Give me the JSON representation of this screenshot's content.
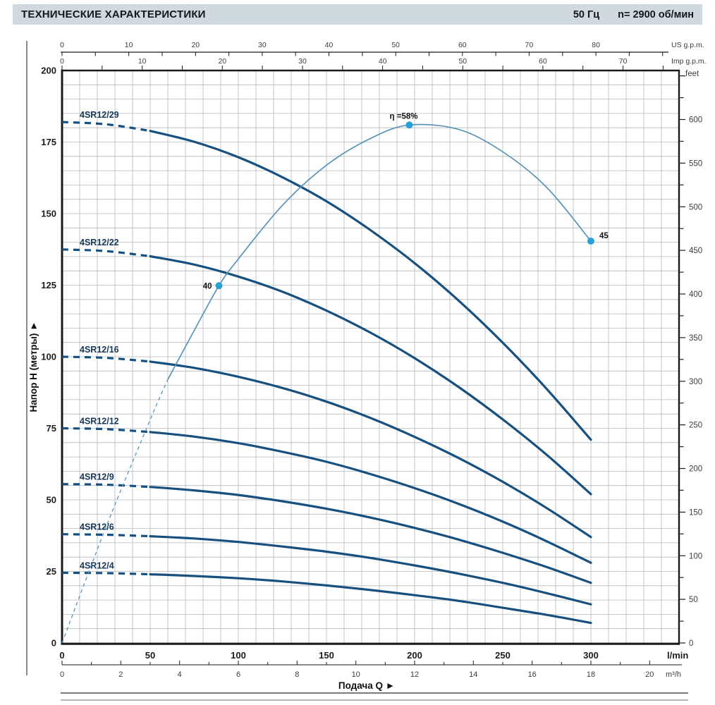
{
  "header": {
    "title": "ТЕХНИЧЕСКИЕ ХАРАКТЕРИСТИКИ",
    "frequency": "50 Гц",
    "speed": "n= 2900 об/мин"
  },
  "chart_data": {
    "type": "line",
    "x_bottom": {
      "label": "Подача Q",
      "unit": "l/min",
      "ticks": [
        0,
        50,
        100,
        150,
        200,
        250,
        300
      ],
      "range_lmin": [
        0,
        350
      ]
    },
    "x_m3h": {
      "unit": "m³/h",
      "ticks": [
        0,
        2,
        4,
        6,
        8,
        10,
        12,
        14,
        16,
        18,
        20
      ],
      "minor_step": 1,
      "lmin_per_unit": 16.6667
    },
    "x_us_gpm": {
      "unit": "US g.p.m.",
      "ticks": [
        0,
        10,
        20,
        30,
        40,
        50,
        60,
        70,
        80
      ],
      "minor_step": 5,
      "minor_max": 90,
      "lmin_per_unit": 3.78541
    },
    "x_imp_gpm": {
      "unit": "Imp g.p.m.",
      "ticks": [
        0,
        10,
        20,
        30,
        40,
        50,
        60,
        70
      ],
      "minor_step": 5,
      "minor_max": 75,
      "lmin_per_unit": 4.54609
    },
    "y_left": {
      "label": "Напор H (метры)",
      "ticks": [
        0,
        25,
        50,
        75,
        100,
        125,
        150,
        175,
        200
      ],
      "range_m": [
        0,
        200
      ]
    },
    "y_right": {
      "unit": "feet",
      "ticks": [
        0,
        50,
        100,
        150,
        200,
        250,
        300,
        350,
        400,
        450,
        500,
        550,
        600
      ],
      "minor_step": 25,
      "minor_max": 650,
      "m_per_unit": 0.3048
    },
    "q_lmin": [
      0,
      25,
      50,
      75,
      100,
      125,
      150,
      175,
      200,
      225,
      250,
      275,
      300
    ],
    "dashed_until_lmin": 50,
    "series": [
      {
        "name": "4SR12/29",
        "h_m": [
          182,
          181.2,
          178.9,
          175.1,
          169.7,
          162.7,
          154.3,
          144.2,
          132.7,
          119.6,
          104.9,
          88.7,
          71
        ]
      },
      {
        "name": "4SR12/22",
        "h_m": [
          137.5,
          136.9,
          135.1,
          132.2,
          128,
          122.7,
          116.1,
          108.4,
          99.5,
          89.4,
          78.1,
          65.7,
          52
        ]
      },
      {
        "name": "4SR12/16",
        "h_m": [
          100,
          99.6,
          98.3,
          96.1,
          93,
          89.1,
          84.3,
          78.6,
          72,
          64.6,
          56.3,
          47.1,
          37
        ]
      },
      {
        "name": "4SR12/12",
        "h_m": [
          75,
          74.7,
          73.7,
          72.1,
          69.8,
          66.8,
          63.3,
          59,
          54.1,
          48.6,
          42.4,
          35.5,
          28
        ]
      },
      {
        "name": "4SR12/9",
        "h_m": [
          55.5,
          55.3,
          54.5,
          53.3,
          51.7,
          49.5,
          46.9,
          43.8,
          40.2,
          36.1,
          31.5,
          26.5,
          21
        ]
      },
      {
        "name": "4SR12/6",
        "h_m": [
          38,
          37.8,
          37.3,
          36.5,
          35.3,
          33.7,
          31.9,
          29.7,
          27.1,
          24.2,
          21,
          17.4,
          13.5
        ]
      },
      {
        "name": "4SR12/4",
        "h_m": [
          24.5,
          24.4,
          24,
          23.4,
          22.6,
          21.5,
          20.1,
          18.5,
          16.7,
          14.7,
          12.3,
          9.8,
          7
        ]
      }
    ],
    "efficiency": {
      "name": "η",
      "pct_to_m": 3.12,
      "dashed_until_lmin": 60,
      "q_lmin": [
        0,
        25,
        50,
        60,
        75,
        89,
        100,
        125,
        150,
        175,
        197,
        225,
        250,
        275,
        300
      ],
      "pct": [
        0,
        13,
        25,
        29.5,
        35,
        40,
        43,
        49,
        53.5,
        56.5,
        58,
        57.5,
        55,
        51,
        45
      ],
      "markers": [
        {
          "q_lmin": 89,
          "pct": 40,
          "label": "40"
        },
        {
          "q_lmin": 197,
          "pct": 58,
          "label": "η =58%"
        },
        {
          "q_lmin": 300,
          "pct": 45,
          "label": "45"
        }
      ]
    },
    "colors": {
      "curve": "#17507e",
      "efficiency_line": "#5b94b8",
      "marker_dot": "#2b9ed6",
      "grid": "#b3b8bb",
      "axis": "#1a1a1a",
      "header_bg": "#cfd9de",
      "curve_label": "#16365a"
    },
    "grid": {
      "x_step_lmin": 10,
      "y_step_m": 5
    }
  }
}
